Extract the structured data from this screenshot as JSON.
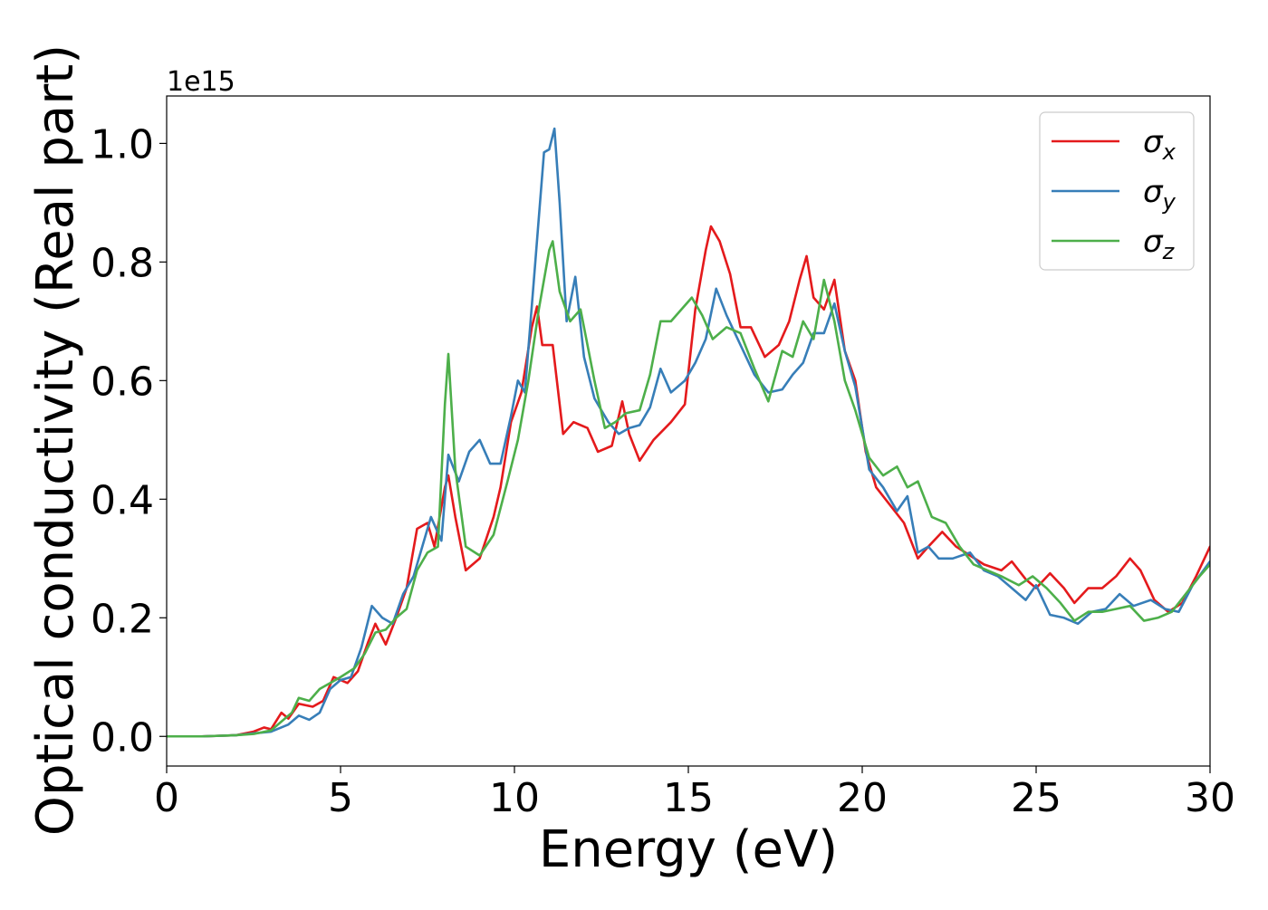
{
  "chart_data": {
    "type": "line",
    "title": "",
    "xlabel": "Energy (eV)",
    "ylabel": "Optical conductivity (Real part)",
    "y_offset_label": "1e15",
    "xlim": [
      0,
      30
    ],
    "ylim": [
      -0.05,
      1.08
    ],
    "x_ticks": [
      0,
      5,
      10,
      15,
      20,
      25,
      30
    ],
    "x_tick_labels": [
      "0",
      "5",
      "10",
      "15",
      "20",
      "25",
      "30"
    ],
    "y_ticks": [
      0.0,
      0.2,
      0.4,
      0.6,
      0.8,
      1.0
    ],
    "y_tick_labels": [
      "0.0",
      "0.2",
      "0.4",
      "0.6",
      "0.8",
      "1.0"
    ],
    "grid": false,
    "legend_position": "top-right",
    "series": [
      {
        "name": "σ",
        "subscript": "x",
        "color": "#e41a1c",
        "points": [
          [
            0,
            0.0
          ],
          [
            1,
            0.0
          ],
          [
            2,
            0.002
          ],
          [
            2.5,
            0.008
          ],
          [
            2.8,
            0.015
          ],
          [
            3.0,
            0.012
          ],
          [
            3.3,
            0.04
          ],
          [
            3.5,
            0.03
          ],
          [
            3.8,
            0.055
          ],
          [
            4.2,
            0.05
          ],
          [
            4.5,
            0.06
          ],
          [
            4.8,
            0.1
          ],
          [
            5.2,
            0.09
          ],
          [
            5.5,
            0.11
          ],
          [
            5.8,
            0.16
          ],
          [
            6.0,
            0.19
          ],
          [
            6.3,
            0.155
          ],
          [
            6.6,
            0.2
          ],
          [
            6.9,
            0.25
          ],
          [
            7.2,
            0.35
          ],
          [
            7.5,
            0.36
          ],
          [
            7.7,
            0.32
          ],
          [
            8.0,
            0.42
          ],
          [
            8.1,
            0.44
          ],
          [
            8.3,
            0.37
          ],
          [
            8.6,
            0.28
          ],
          [
            9.0,
            0.3
          ],
          [
            9.4,
            0.37
          ],
          [
            9.6,
            0.42
          ],
          [
            9.9,
            0.53
          ],
          [
            10.2,
            0.58
          ],
          [
            10.5,
            0.69
          ],
          [
            10.65,
            0.725
          ],
          [
            10.8,
            0.66
          ],
          [
            11.1,
            0.66
          ],
          [
            11.4,
            0.51
          ],
          [
            11.7,
            0.53
          ],
          [
            12.1,
            0.52
          ],
          [
            12.4,
            0.48
          ],
          [
            12.8,
            0.49
          ],
          [
            13.1,
            0.565
          ],
          [
            13.3,
            0.51
          ],
          [
            13.6,
            0.465
          ],
          [
            14.0,
            0.5
          ],
          [
            14.5,
            0.53
          ],
          [
            14.9,
            0.56
          ],
          [
            15.2,
            0.72
          ],
          [
            15.5,
            0.82
          ],
          [
            15.65,
            0.86
          ],
          [
            15.9,
            0.835
          ],
          [
            16.2,
            0.78
          ],
          [
            16.5,
            0.69
          ],
          [
            16.8,
            0.69
          ],
          [
            17.2,
            0.64
          ],
          [
            17.6,
            0.66
          ],
          [
            17.9,
            0.7
          ],
          [
            18.2,
            0.77
          ],
          [
            18.4,
            0.81
          ],
          [
            18.6,
            0.74
          ],
          [
            18.9,
            0.72
          ],
          [
            19.2,
            0.77
          ],
          [
            19.5,
            0.65
          ],
          [
            19.8,
            0.6
          ],
          [
            20.1,
            0.48
          ],
          [
            20.4,
            0.42
          ],
          [
            20.8,
            0.39
          ],
          [
            21.2,
            0.36
          ],
          [
            21.6,
            0.3
          ],
          [
            21.9,
            0.32
          ],
          [
            22.3,
            0.345
          ],
          [
            22.7,
            0.32
          ],
          [
            23.1,
            0.305
          ],
          [
            23.5,
            0.29
          ],
          [
            24.0,
            0.28
          ],
          [
            24.3,
            0.295
          ],
          [
            24.7,
            0.265
          ],
          [
            25.0,
            0.25
          ],
          [
            25.4,
            0.275
          ],
          [
            25.8,
            0.25
          ],
          [
            26.1,
            0.225
          ],
          [
            26.5,
            0.25
          ],
          [
            26.9,
            0.25
          ],
          [
            27.3,
            0.27
          ],
          [
            27.7,
            0.3
          ],
          [
            28.0,
            0.28
          ],
          [
            28.4,
            0.23
          ],
          [
            28.8,
            0.21
          ],
          [
            29.2,
            0.225
          ],
          [
            29.6,
            0.27
          ],
          [
            30,
            0.32
          ]
        ]
      },
      {
        "name": "σ",
        "subscript": "y",
        "color": "#377eb8",
        "points": [
          [
            0,
            0.0
          ],
          [
            1,
            0.0
          ],
          [
            2,
            0.002
          ],
          [
            2.5,
            0.005
          ],
          [
            3.0,
            0.008
          ],
          [
            3.5,
            0.02
          ],
          [
            3.8,
            0.035
          ],
          [
            4.1,
            0.028
          ],
          [
            4.4,
            0.04
          ],
          [
            4.7,
            0.08
          ],
          [
            5.0,
            0.095
          ],
          [
            5.3,
            0.1
          ],
          [
            5.6,
            0.15
          ],
          [
            5.9,
            0.22
          ],
          [
            6.2,
            0.2
          ],
          [
            6.5,
            0.19
          ],
          [
            6.8,
            0.24
          ],
          [
            7.1,
            0.27
          ],
          [
            7.4,
            0.33
          ],
          [
            7.6,
            0.37
          ],
          [
            7.9,
            0.33
          ],
          [
            8.1,
            0.475
          ],
          [
            8.4,
            0.43
          ],
          [
            8.7,
            0.48
          ],
          [
            9.0,
            0.5
          ],
          [
            9.3,
            0.46
          ],
          [
            9.6,
            0.46
          ],
          [
            9.9,
            0.54
          ],
          [
            10.1,
            0.6
          ],
          [
            10.3,
            0.58
          ],
          [
            10.6,
            0.8
          ],
          [
            10.85,
            0.985
          ],
          [
            11.0,
            0.99
          ],
          [
            11.15,
            1.025
          ],
          [
            11.3,
            0.9
          ],
          [
            11.5,
            0.7
          ],
          [
            11.75,
            0.775
          ],
          [
            12.0,
            0.64
          ],
          [
            12.3,
            0.57
          ],
          [
            12.7,
            0.53
          ],
          [
            13.0,
            0.51
          ],
          [
            13.3,
            0.52
          ],
          [
            13.6,
            0.525
          ],
          [
            13.9,
            0.555
          ],
          [
            14.2,
            0.62
          ],
          [
            14.5,
            0.58
          ],
          [
            14.9,
            0.6
          ],
          [
            15.2,
            0.63
          ],
          [
            15.5,
            0.67
          ],
          [
            15.8,
            0.755
          ],
          [
            16.1,
            0.71
          ],
          [
            16.5,
            0.66
          ],
          [
            16.9,
            0.61
          ],
          [
            17.3,
            0.58
          ],
          [
            17.7,
            0.585
          ],
          [
            18.0,
            0.61
          ],
          [
            18.3,
            0.63
          ],
          [
            18.6,
            0.68
          ],
          [
            18.9,
            0.68
          ],
          [
            19.2,
            0.73
          ],
          [
            19.5,
            0.65
          ],
          [
            19.8,
            0.59
          ],
          [
            20.2,
            0.45
          ],
          [
            20.6,
            0.42
          ],
          [
            21.0,
            0.38
          ],
          [
            21.3,
            0.405
          ],
          [
            21.6,
            0.31
          ],
          [
            21.9,
            0.32
          ],
          [
            22.2,
            0.3
          ],
          [
            22.6,
            0.3
          ],
          [
            23.1,
            0.31
          ],
          [
            23.5,
            0.28
          ],
          [
            23.9,
            0.27
          ],
          [
            24.3,
            0.25
          ],
          [
            24.7,
            0.23
          ],
          [
            25.0,
            0.255
          ],
          [
            25.4,
            0.205
          ],
          [
            25.8,
            0.2
          ],
          [
            26.2,
            0.19
          ],
          [
            26.6,
            0.21
          ],
          [
            27.0,
            0.215
          ],
          [
            27.4,
            0.24
          ],
          [
            27.8,
            0.22
          ],
          [
            28.3,
            0.23
          ],
          [
            28.7,
            0.215
          ],
          [
            29.1,
            0.21
          ],
          [
            29.5,
            0.255
          ],
          [
            30,
            0.295
          ]
        ]
      },
      {
        "name": "σ",
        "subscript": "z",
        "color": "#4daf4a",
        "points": [
          [
            0,
            0.0
          ],
          [
            1,
            0.0
          ],
          [
            2,
            0.002
          ],
          [
            2.5,
            0.004
          ],
          [
            3.0,
            0.01
          ],
          [
            3.3,
            0.025
          ],
          [
            3.6,
            0.04
          ],
          [
            3.8,
            0.065
          ],
          [
            4.1,
            0.06
          ],
          [
            4.4,
            0.08
          ],
          [
            4.7,
            0.09
          ],
          [
            5.0,
            0.1
          ],
          [
            5.4,
            0.115
          ],
          [
            5.7,
            0.14
          ],
          [
            6.0,
            0.175
          ],
          [
            6.3,
            0.18
          ],
          [
            6.6,
            0.2
          ],
          [
            6.9,
            0.215
          ],
          [
            7.2,
            0.28
          ],
          [
            7.5,
            0.31
          ],
          [
            7.8,
            0.32
          ],
          [
            8.0,
            0.56
          ],
          [
            8.1,
            0.645
          ],
          [
            8.3,
            0.45
          ],
          [
            8.6,
            0.32
          ],
          [
            9.0,
            0.305
          ],
          [
            9.4,
            0.34
          ],
          [
            9.8,
            0.43
          ],
          [
            10.1,
            0.5
          ],
          [
            10.4,
            0.6
          ],
          [
            10.7,
            0.72
          ],
          [
            11.0,
            0.82
          ],
          [
            11.1,
            0.835
          ],
          [
            11.3,
            0.75
          ],
          [
            11.6,
            0.7
          ],
          [
            11.9,
            0.72
          ],
          [
            12.3,
            0.6
          ],
          [
            12.6,
            0.52
          ],
          [
            12.9,
            0.53
          ],
          [
            13.2,
            0.545
          ],
          [
            13.6,
            0.55
          ],
          [
            13.9,
            0.61
          ],
          [
            14.2,
            0.7
          ],
          [
            14.5,
            0.7
          ],
          [
            14.8,
            0.72
          ],
          [
            15.1,
            0.74
          ],
          [
            15.4,
            0.71
          ],
          [
            15.7,
            0.67
          ],
          [
            16.1,
            0.69
          ],
          [
            16.5,
            0.68
          ],
          [
            16.9,
            0.62
          ],
          [
            17.3,
            0.565
          ],
          [
            17.7,
            0.65
          ],
          [
            18.0,
            0.64
          ],
          [
            18.3,
            0.7
          ],
          [
            18.6,
            0.67
          ],
          [
            18.9,
            0.77
          ],
          [
            19.2,
            0.7
          ],
          [
            19.5,
            0.6
          ],
          [
            19.8,
            0.55
          ],
          [
            20.2,
            0.47
          ],
          [
            20.6,
            0.44
          ],
          [
            21.0,
            0.455
          ],
          [
            21.3,
            0.42
          ],
          [
            21.6,
            0.43
          ],
          [
            22.0,
            0.37
          ],
          [
            22.4,
            0.36
          ],
          [
            22.8,
            0.32
          ],
          [
            23.2,
            0.29
          ],
          [
            23.6,
            0.28
          ],
          [
            24.0,
            0.27
          ],
          [
            24.5,
            0.255
          ],
          [
            24.9,
            0.27
          ],
          [
            25.3,
            0.25
          ],
          [
            25.7,
            0.225
          ],
          [
            26.1,
            0.195
          ],
          [
            26.5,
            0.21
          ],
          [
            26.9,
            0.21
          ],
          [
            27.3,
            0.215
          ],
          [
            27.7,
            0.22
          ],
          [
            28.1,
            0.195
          ],
          [
            28.5,
            0.2
          ],
          [
            28.9,
            0.21
          ],
          [
            29.3,
            0.24
          ],
          [
            29.7,
            0.27
          ],
          [
            30,
            0.29
          ]
        ]
      }
    ]
  }
}
